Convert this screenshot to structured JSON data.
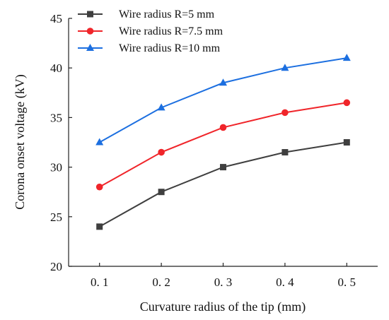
{
  "chart_data": {
    "type": "line",
    "title": "",
    "xlabel": "Curvature radius of the tip (mm)",
    "ylabel": "Corona onset voltage (kV)",
    "x": [
      0.1,
      0.2,
      0.3,
      0.4,
      0.5
    ],
    "x_tick_labels": [
      "0. 1",
      "0. 2",
      "0. 3",
      "0. 4",
      "0. 5"
    ],
    "xlim": [
      0.05,
      0.55
    ],
    "ylim": [
      20,
      45
    ],
    "y_ticks": [
      20,
      25,
      30,
      35,
      40,
      45
    ],
    "grid": false,
    "legend_position": "top-left",
    "series": [
      {
        "name": "Wire radius R=5 mm",
        "color": "#3f3f3f",
        "marker": "square",
        "values": [
          24.0,
          27.5,
          30.0,
          31.5,
          32.5
        ]
      },
      {
        "name": "Wire radius R=7.5 mm",
        "color": "#f0252a",
        "marker": "circle",
        "values": [
          28.0,
          31.5,
          34.0,
          35.5,
          36.5
        ]
      },
      {
        "name": "Wire radius R=10 mm",
        "color": "#1c6fe0",
        "marker": "triangle",
        "values": [
          32.5,
          36.0,
          38.5,
          40.0,
          41.0
        ]
      }
    ]
  }
}
